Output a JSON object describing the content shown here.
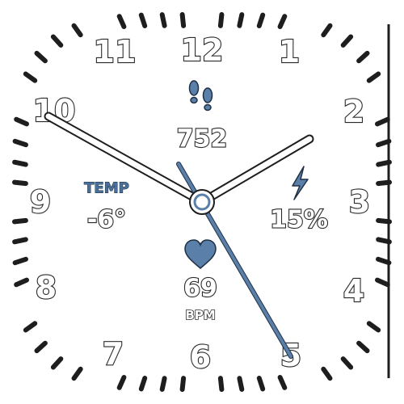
{
  "watch_face": {
    "hour_numbers": [
      "12",
      "1",
      "2",
      "3",
      "4",
      "5",
      "6",
      "7",
      "8",
      "9",
      "10",
      "11"
    ],
    "steps": {
      "icon": "footprints-icon",
      "value": "752"
    },
    "temperature": {
      "label": "TEMP",
      "value": "-6°"
    },
    "battery": {
      "icon": "lightning-bolt-icon",
      "value": "15%"
    },
    "heart_rate": {
      "icon": "heart-icon",
      "value": "69",
      "unit": "BPM"
    },
    "colors": {
      "accent": "#5a7fa8",
      "outline": "#2a2a2a",
      "hand_fill": "#ffffff"
    }
  }
}
